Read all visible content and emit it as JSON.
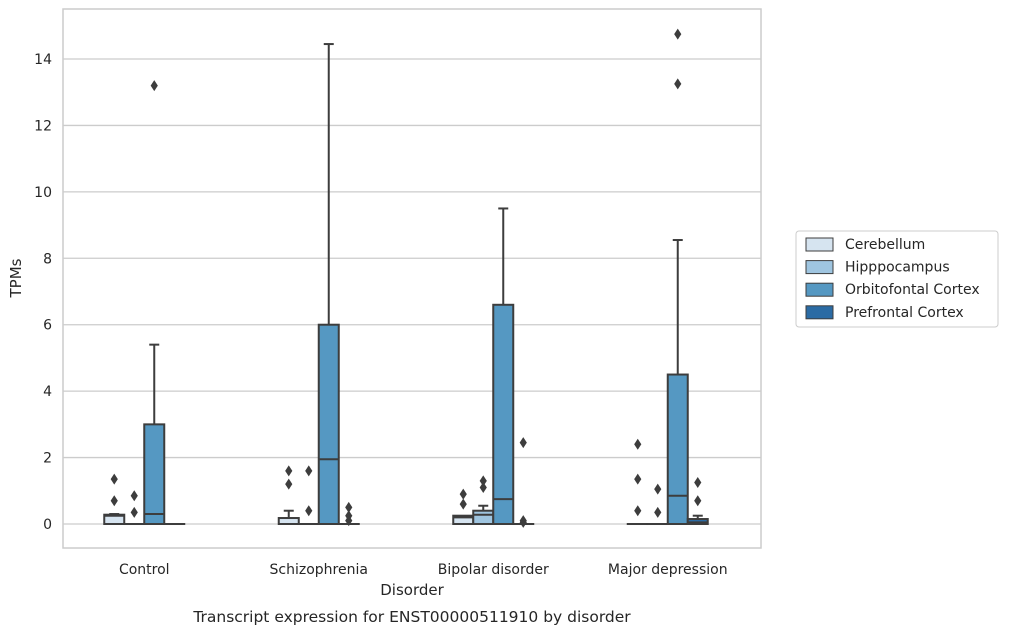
{
  "chart_data": {
    "type": "box",
    "title": "",
    "caption": "Transcript expression for ENST00000511910 by disorder",
    "xlabel": "Disorder",
    "ylabel": "TPMs",
    "ylim": [
      -0.7,
      15.5
    ],
    "yticks": [
      "0",
      "2",
      "4",
      "6",
      "8",
      "10",
      "12",
      "14"
    ],
    "grid": "horizontal",
    "legend_position": "right",
    "categories": [
      "Control",
      "Schizophrenia",
      "Bipolar disorder",
      "Major depression"
    ],
    "series": [
      {
        "name": "Cerebellum",
        "color": "#d6e4f0",
        "boxes": [
          {
            "q1": 0,
            "median": 0.25,
            "q3": 0.28,
            "whisker_low": 0,
            "whisker_high": 0.3,
            "outliers": [
              0.7,
              1.35
            ]
          },
          {
            "q1": 0,
            "median": 0,
            "q3": 0.18,
            "whisker_low": 0,
            "whisker_high": 0.4,
            "outliers": [
              1.2,
              1.6
            ]
          },
          {
            "q1": 0,
            "median": 0.2,
            "q3": 0.25,
            "whisker_low": 0,
            "whisker_high": 0.25,
            "outliers": [
              0.6,
              0.9
            ]
          },
          {
            "q1": 0,
            "median": 0,
            "q3": 0,
            "whisker_low": 0,
            "whisker_high": 0,
            "outliers": [
              0.4,
              1.35,
              2.4
            ]
          }
        ]
      },
      {
        "name": "Hipppocampus",
        "color": "#9fc5e0",
        "boxes": [
          {
            "q1": 0,
            "median": 0,
            "q3": 0,
            "whisker_low": 0,
            "whisker_high": 0,
            "outliers": [
              0.35,
              0.85
            ]
          },
          {
            "q1": 0,
            "median": 0,
            "q3": 0,
            "whisker_low": 0,
            "whisker_high": 0,
            "outliers": [
              0.4,
              1.6
            ]
          },
          {
            "q1": 0,
            "median": 0.28,
            "q3": 0.4,
            "whisker_low": 0,
            "whisker_high": 0.55,
            "outliers": [
              1.1,
              1.3
            ]
          },
          {
            "q1": 0,
            "median": 0,
            "q3": 0,
            "whisker_low": 0,
            "whisker_high": 0,
            "outliers": [
              0.35,
              1.05
            ]
          }
        ]
      },
      {
        "name": "Orbitofontal Cortex",
        "color": "#5598c2",
        "boxes": [
          {
            "q1": 0,
            "median": 0.3,
            "q3": 3.0,
            "whisker_low": 0,
            "whisker_high": 5.4,
            "outliers": [
              13.2
            ]
          },
          {
            "q1": 0,
            "median": 1.95,
            "q3": 6.0,
            "whisker_low": 0,
            "whisker_high": 14.45,
            "outliers": []
          },
          {
            "q1": 0,
            "median": 0.75,
            "q3": 6.6,
            "whisker_low": 0,
            "whisker_high": 9.5,
            "outliers": []
          },
          {
            "q1": 0,
            "median": 0.85,
            "q3": 4.5,
            "whisker_low": 0,
            "whisker_high": 8.55,
            "outliers": [
              13.25,
              14.75
            ]
          }
        ]
      },
      {
        "name": "Prefrontal Cortex",
        "color": "#2b6ba4",
        "boxes": [
          {
            "q1": 0,
            "median": 0,
            "q3": 0,
            "whisker_low": 0,
            "whisker_high": 0,
            "outliers": []
          },
          {
            "q1": 0,
            "median": 0,
            "q3": 0,
            "whisker_low": 0,
            "whisker_high": 0,
            "outliers": [
              0.1,
              0.25,
              0.5
            ]
          },
          {
            "q1": 0,
            "median": 0,
            "q3": 0,
            "whisker_low": 0,
            "whisker_high": 0,
            "outliers": [
              0.05,
              0.1,
              2.45
            ]
          },
          {
            "q1": 0,
            "median": 0.05,
            "q3": 0.15,
            "whisker_low": 0,
            "whisker_high": 0.25,
            "outliers": [
              0.7,
              1.25
            ]
          }
        ]
      }
    ]
  }
}
